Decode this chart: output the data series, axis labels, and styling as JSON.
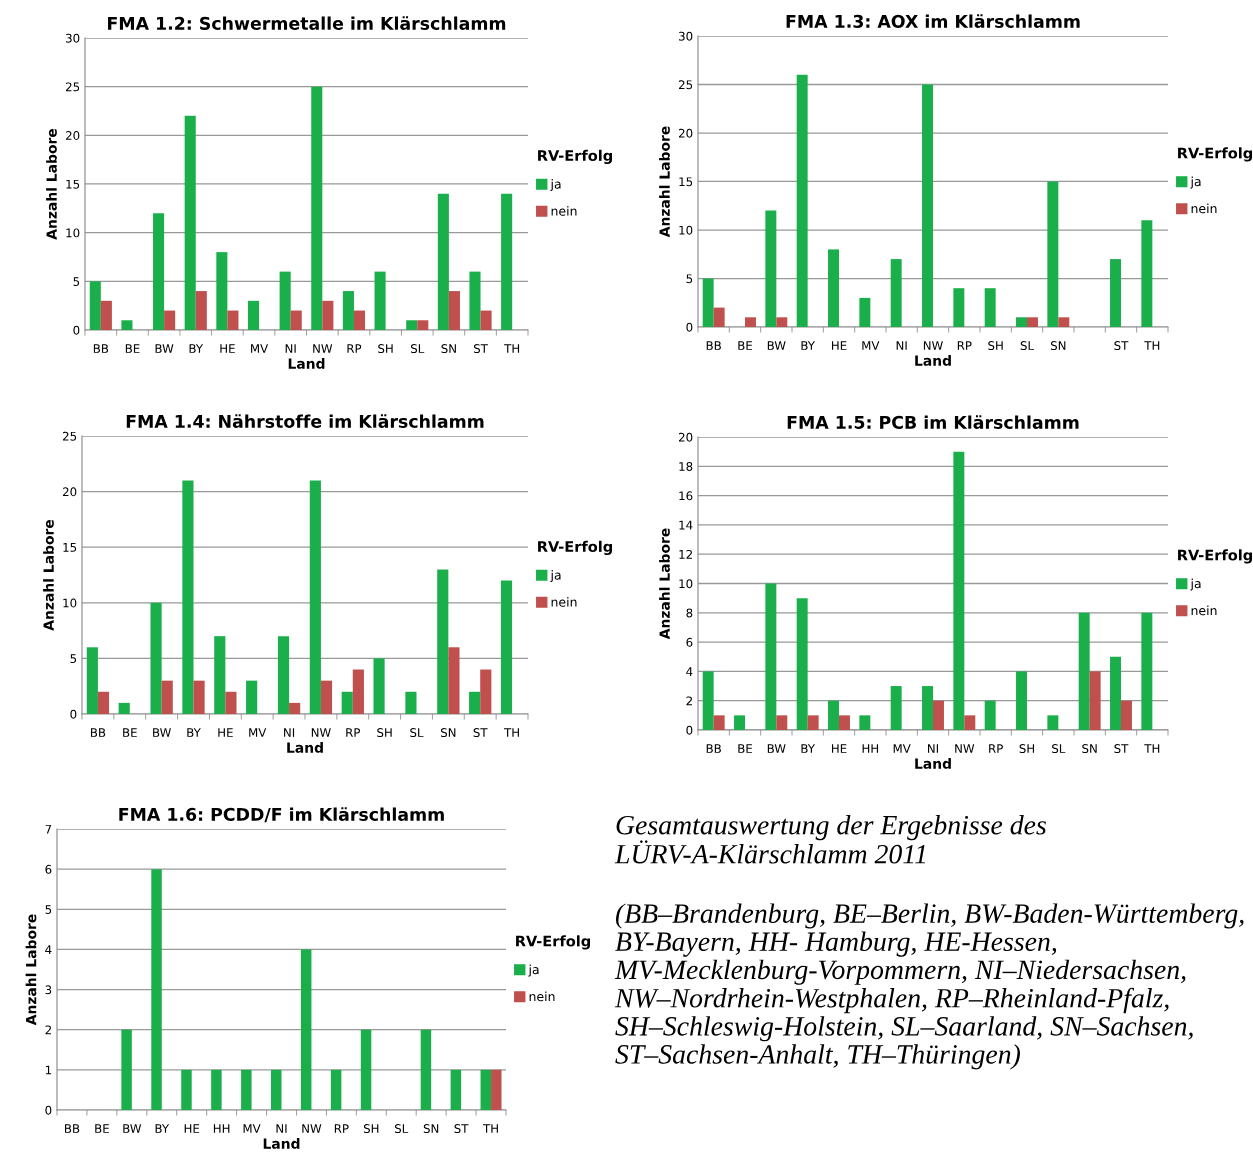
{
  "chart_data": [
    {
      "type": "bar",
      "title": "FMA 1.2: Schwermetalle im Klärschlamm",
      "xlabel": "Land",
      "ylabel": "Anzahl Labore",
      "legend_title": "RV-Erfolg",
      "legend": "right",
      "grid": "y",
      "categories": [
        "BB",
        "BE",
        "BW",
        "BY",
        "HE",
        "MV",
        "NI",
        "NW",
        "RP",
        "SH",
        "SL",
        "SN",
        "ST",
        "TH"
      ],
      "ylim": [
        0,
        30
      ],
      "yticks": [
        0,
        5,
        10,
        15,
        20,
        25,
        30
      ],
      "series": [
        {
          "name": "ja",
          "color": "#1aaf4b",
          "values": [
            5,
            1,
            12,
            22,
            8,
            3,
            6,
            25,
            4,
            6,
            1,
            14,
            6,
            14
          ]
        },
        {
          "name": "nein",
          "color": "#c0504d",
          "values": [
            3,
            null,
            2,
            4,
            2,
            null,
            2,
            3,
            2,
            null,
            1,
            4,
            2,
            null
          ]
        }
      ]
    },
    {
      "type": "bar",
      "title": "FMA 1.3: AOX im Klärschlamm",
      "xlabel": "Land",
      "ylabel": "Anzahl Labore",
      "legend_title": "RV-Erfolg",
      "legend": "right",
      "grid": "y",
      "categories": [
        "BB",
        "BE",
        "BW",
        "BY",
        "HE",
        "MV",
        "NI",
        "NW",
        "RP",
        "SH",
        "SL",
        "SN",
        null,
        "ST",
        "TH"
      ],
      "ylim": [
        0,
        30
      ],
      "yticks": [
        0,
        5,
        10,
        15,
        20,
        25,
        30
      ],
      "series": [
        {
          "name": "ja",
          "color": "#1aaf4b",
          "values": [
            5,
            null,
            12,
            26,
            8,
            3,
            7,
            25,
            4,
            4,
            1,
            15,
            null,
            7,
            11
          ]
        },
        {
          "name": "nein",
          "color": "#c0504d",
          "values": [
            2,
            1,
            1,
            null,
            null,
            null,
            null,
            null,
            null,
            null,
            1,
            1,
            null,
            null,
            null
          ]
        }
      ]
    },
    {
      "type": "bar",
      "title": "FMA 1.4: Nährstoffe im Klärschlamm",
      "xlabel": "Land",
      "ylabel": "Anzahl Labore",
      "legend_title": "RV-Erfolg",
      "legend": "right",
      "grid": "y",
      "categories": [
        "BB",
        "BE",
        "BW",
        "BY",
        "HE",
        "MV",
        "NI",
        "NW",
        "RP",
        "SH",
        "SL",
        "SN",
        "ST",
        "TH"
      ],
      "ylim": [
        0,
        25
      ],
      "yticks": [
        0,
        5,
        10,
        15,
        20,
        25
      ],
      "series": [
        {
          "name": "ja",
          "color": "#1aaf4b",
          "values": [
            6,
            1,
            10,
            21,
            7,
            3,
            7,
            21,
            2,
            5,
            2,
            13,
            2,
            12
          ]
        },
        {
          "name": "nein",
          "color": "#c0504d",
          "values": [
            2,
            null,
            3,
            3,
            2,
            null,
            1,
            3,
            4,
            null,
            null,
            6,
            4,
            null
          ]
        }
      ]
    },
    {
      "type": "bar",
      "title": "FMA 1.5: PCB im Klärschlamm",
      "xlabel": "Land",
      "ylabel": "Anzahl Labore",
      "legend_title": "RV-Erfolg",
      "legend": "right",
      "grid": "y",
      "categories": [
        "BB",
        "BE",
        "BW",
        "BY",
        "HE",
        "HH",
        "MV",
        "NI",
        "NW",
        "RP",
        "SH",
        "SL",
        "SN",
        "ST",
        "TH"
      ],
      "ylim": [
        0,
        20
      ],
      "yticks": [
        0,
        2,
        4,
        6,
        8,
        10,
        12,
        14,
        16,
        18,
        20
      ],
      "series": [
        {
          "name": "ja",
          "color": "#1aaf4b",
          "values": [
            4,
            1,
            10,
            9,
            2,
            1,
            3,
            3,
            19,
            2,
            4,
            1,
            8,
            5,
            8
          ]
        },
        {
          "name": "nein",
          "color": "#c0504d",
          "values": [
            1,
            null,
            1,
            1,
            1,
            null,
            null,
            2,
            1,
            null,
            null,
            null,
            4,
            2,
            null
          ]
        }
      ]
    },
    {
      "type": "bar",
      "title": "FMA 1.6: PCDD/F im Klärschlamm",
      "xlabel": "Land",
      "ylabel": "Anzahl Labore",
      "legend_title": "RV-Erfolg",
      "legend": "right",
      "grid": "y",
      "categories": [
        "BB",
        "BE",
        "BW",
        "BY",
        "HE",
        "HH",
        "MV",
        "NI",
        "NW",
        "RP",
        "SH",
        "SL",
        "SN",
        "ST",
        "TH"
      ],
      "ylim": [
        0,
        7
      ],
      "yticks": [
        0,
        1,
        2,
        3,
        4,
        5,
        6,
        7
      ],
      "series": [
        {
          "name": "ja",
          "color": "#1aaf4b",
          "values": [
            null,
            null,
            2,
            6,
            1,
            1,
            1,
            1,
            4,
            1,
            2,
            null,
            2,
            1,
            1
          ]
        },
        {
          "name": "nein",
          "color": "#c0504d",
          "values": [
            null,
            null,
            null,
            null,
            null,
            null,
            null,
            null,
            null,
            null,
            null,
            null,
            null,
            null,
            1
          ]
        }
      ]
    },
    {
      "type": "other",
      "title": "Gesamtauswertung der Ergebnisse des LÜRV-A-Klärschlamm 2011",
      "annotations": [
        "(BB–Brandenburg, BE–Berlin, BW-Baden-Württemberg, BY-Bayern, HH- Hamburg, HE-Hessen, MV-Mecklenburg-Vorpommern, NI–Niedersachsen, NW–Nordrhein-Westphalen, RP–Rheinland-Pfalz, SH–Schleswig-Holstein, SL–Saarland, SN–Sachsen, ST–Sachsen-Anhalt, TH–Thüringen)"
      ]
    }
  ]
}
